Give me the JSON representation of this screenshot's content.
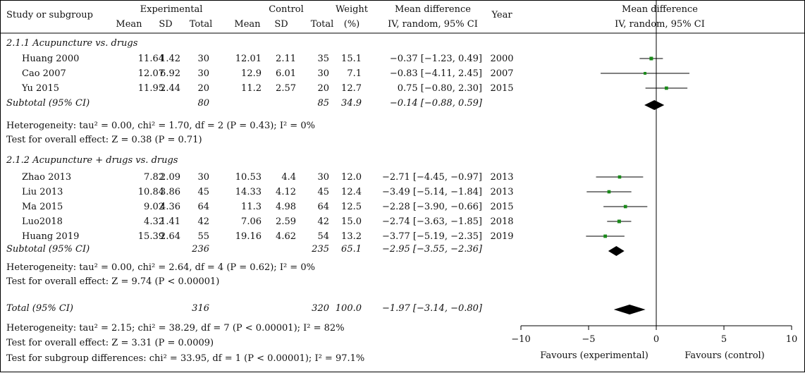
{
  "header": {
    "study_col": "Study or subgroup",
    "group1": "Experimental",
    "group2": "Control",
    "weight": "Weight",
    "weight_unit": "(%)",
    "md": "Mean difference",
    "md_method": "IV, random, 95% CI",
    "year": "Year",
    "plot_md": "Mean difference",
    "plot_method": "IV, random, 95% CI",
    "mean": "Mean",
    "sd": "SD",
    "total": "Total"
  },
  "chart_data": {
    "type": "forest",
    "xlim": [
      -10,
      10
    ],
    "xticks": [
      -10,
      -5,
      0,
      5,
      10
    ],
    "xtick_labels": [
      "−10",
      "−5",
      "0",
      "5",
      "10"
    ],
    "favours_left": "Favours (experimental)",
    "favours_right": "Favours (control)",
    "subgroups": [
      {
        "title": "2.1.1 Acupuncture vs. drugs",
        "studies": [
          {
            "name": "Huang 2000",
            "e_mean": "11.64",
            "e_sd": "1.42",
            "e_total": "30",
            "c_mean": "12.01",
            "c_sd": "2.11",
            "c_total": "35",
            "weight": "15.1",
            "ci_text": "−0.37 [−1.23, 0.49]",
            "year": "2000",
            "md": -0.37,
            "lo": -1.23,
            "hi": 0.49
          },
          {
            "name": "Cao 2007",
            "e_mean": "12.07",
            "e_sd": "6.92",
            "e_total": "30",
            "c_mean": "12.9",
            "c_sd": "6.01",
            "c_total": "30",
            "weight": "7.1",
            "ci_text": "−0.83 [−4.11, 2.45]",
            "year": "2007",
            "md": -0.83,
            "lo": -4.11,
            "hi": 2.45
          },
          {
            "name": "Yu 2015",
            "e_mean": "11.95",
            "e_sd": "2.44",
            "e_total": "20",
            "c_mean": "11.2",
            "c_sd": "2.57",
            "c_total": "20",
            "weight": "12.7",
            "ci_text": "0.75 [−0.80, 2.30]",
            "year": "2015",
            "md": 0.75,
            "lo": -0.8,
            "hi": 2.3
          }
        ],
        "subtotal": {
          "label": "Subtotal (95% CI)",
          "e_total": "80",
          "c_total": "85",
          "weight": "34.9",
          "ci_text": "−0.14 [−0.88, 0.59]",
          "md": -0.14,
          "lo": -0.88,
          "hi": 0.59
        },
        "heterogeneity": "Heterogeneity: tau² = 0.00, chi² = 1.70, df = 2 (P = 0.43); I² = 0%",
        "overall": "Test for overall effect: Z = 0.38 (P = 0.71)"
      },
      {
        "title": "2.1.2 Acupuncture + drugs vs. drugs",
        "studies": [
          {
            "name": "Zhao 2013",
            "e_mean": "7.82",
            "e_sd": "2.09",
            "e_total": "30",
            "c_mean": "10.53",
            "c_sd": "4.4",
            "c_total": "30",
            "weight": "12.0",
            "ci_text": "−2.71 [−4.45, −0.97]",
            "year": "2013",
            "md": -2.71,
            "lo": -4.45,
            "hi": -0.97
          },
          {
            "name": "Liu 2013",
            "e_mean": "10.84",
            "e_sd": "3.86",
            "e_total": "45",
            "c_mean": "14.33",
            "c_sd": "4.12",
            "c_total": "45",
            "weight": "12.4",
            "ci_text": "−3.49 [−5.14, −1.84]",
            "year": "2013",
            "md": -3.49,
            "lo": -5.14,
            "hi": -1.84
          },
          {
            "name": "Ma 2015",
            "e_mean": "9.02",
            "e_sd": "4.36",
            "e_total": "64",
            "c_mean": "11.3",
            "c_sd": "4.98",
            "c_total": "64",
            "weight": "12.5",
            "ci_text": "−2.28 [−3.90, −0.66]",
            "year": "2015",
            "md": -2.28,
            "lo": -3.9,
            "hi": -0.66
          },
          {
            "name": "Luo2018",
            "e_mean": "4.32",
            "e_sd": "1.41",
            "e_total": "42",
            "c_mean": "7.06",
            "c_sd": "2.59",
            "c_total": "42",
            "weight": "15.0",
            "ci_text": "−2.74 [−3.63, −1.85]",
            "year": "2018",
            "md": -2.74,
            "lo": -3.63,
            "hi": -1.85
          },
          {
            "name": "Huang 2019",
            "e_mean": "15.39",
            "e_sd": "2.64",
            "e_total": "55",
            "c_mean": "19.16",
            "c_sd": "4.62",
            "c_total": "54",
            "weight": "13.2",
            "ci_text": "−3.77 [−5.19, −2.35]",
            "year": "2019",
            "md": -3.77,
            "lo": -5.19,
            "hi": -2.35
          }
        ],
        "subtotal": {
          "label": "Subtotal (95% CI)",
          "e_total": "236",
          "c_total": "235",
          "weight": "65.1",
          "ci_text": "−2.95 [−3.55, −2.36]",
          "md": -2.95,
          "lo": -3.55,
          "hi": -2.36
        },
        "heterogeneity": "Heterogeneity: tau² = 0.00, chi² = 2.64, df = 4 (P = 0.62); I² = 0%",
        "overall": "Test for overall effect: Z = 9.74 (P < 0.00001)"
      }
    ],
    "total": {
      "label": "Total (95% CI)",
      "e_total": "316",
      "c_total": "320",
      "weight": "100.0",
      "ci_text": "−1.97 [−3.14, −0.80]",
      "md": -1.97,
      "lo": -3.14,
      "hi": -0.8
    },
    "footer": [
      "Heterogeneity: tau² = 2.15; chi² = 38.29, df = 7 (P < 0.00001); I² = 82%",
      "Test for overall effect: Z = 3.31 (P = 0.0009)",
      "Test for subgroup differences: chi² = 33.95, df = 1 (P < 0.00001); I² = 97.1%"
    ]
  }
}
